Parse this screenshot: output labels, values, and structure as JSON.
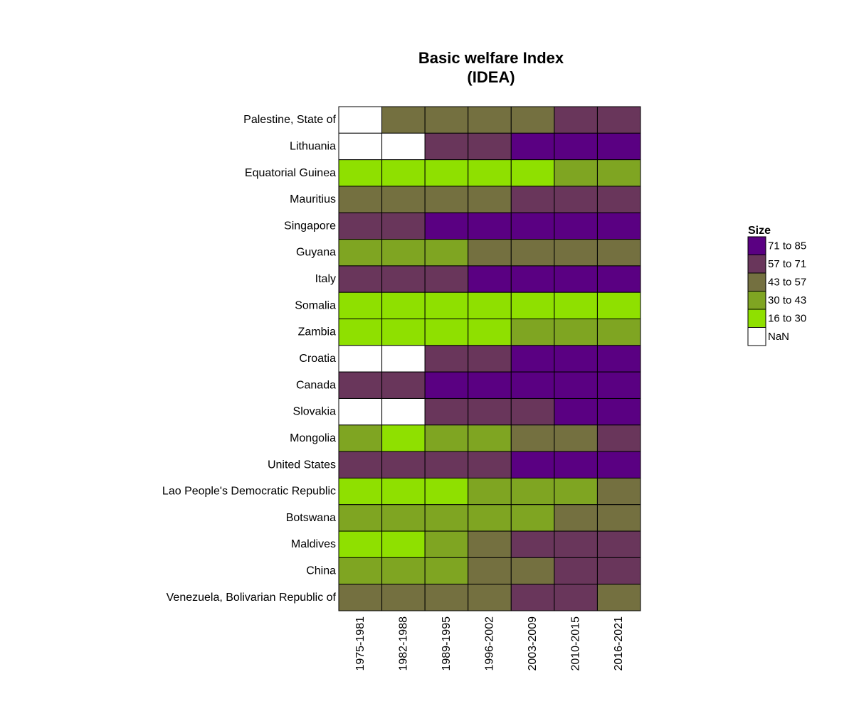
{
  "chart_data": {
    "type": "heatmap",
    "title": [
      "Basic welfare Index",
      "(IDEA)"
    ],
    "rows": [
      "Palestine, State of",
      "Lithuania",
      "Equatorial Guinea",
      "Mauritius",
      "Singapore",
      "Guyana",
      "Italy",
      "Somalia",
      "Zambia",
      "Croatia",
      "Canada",
      "Slovakia",
      "Mongolia",
      "United States",
      "Lao People's Democratic Republic",
      "Botswana",
      "Maldives",
      "China",
      "Venezuela, Bolivarian Republic of"
    ],
    "columns": [
      "1975-1981",
      "1982-1988",
      "1989-1995",
      "1996-2002",
      "2003-2009",
      "2010-2015",
      "2016-2021"
    ],
    "values": [
      [
        "NaN",
        "43 to 57",
        "43 to 57",
        "43 to 57",
        "43 to 57",
        "57 to 71",
        "57 to 71"
      ],
      [
        "NaN",
        "NaN",
        "57 to 71",
        "57 to 71",
        "71 to 85",
        "71 to 85",
        "71 to 85"
      ],
      [
        "16 to 30",
        "16 to 30",
        "16 to 30",
        "16 to 30",
        "16 to 30",
        "30 to 43",
        "30 to 43"
      ],
      [
        "43 to 57",
        "43 to 57",
        "43 to 57",
        "43 to 57",
        "57 to 71",
        "57 to 71",
        "57 to 71"
      ],
      [
        "57 to 71",
        "57 to 71",
        "71 to 85",
        "71 to 85",
        "71 to 85",
        "71 to 85",
        "71 to 85"
      ],
      [
        "30 to 43",
        "30 to 43",
        "30 to 43",
        "43 to 57",
        "43 to 57",
        "43 to 57",
        "43 to 57"
      ],
      [
        "57 to 71",
        "57 to 71",
        "57 to 71",
        "71 to 85",
        "71 to 85",
        "71 to 85",
        "71 to 85"
      ],
      [
        "16 to 30",
        "16 to 30",
        "16 to 30",
        "16 to 30",
        "16 to 30",
        "16 to 30",
        "16 to 30"
      ],
      [
        "16 to 30",
        "16 to 30",
        "16 to 30",
        "16 to 30",
        "30 to 43",
        "30 to 43",
        "30 to 43"
      ],
      [
        "NaN",
        "NaN",
        "57 to 71",
        "57 to 71",
        "71 to 85",
        "71 to 85",
        "71 to 85"
      ],
      [
        "57 to 71",
        "57 to 71",
        "71 to 85",
        "71 to 85",
        "71 to 85",
        "71 to 85",
        "71 to 85"
      ],
      [
        "NaN",
        "NaN",
        "57 to 71",
        "57 to 71",
        "57 to 71",
        "71 to 85",
        "71 to 85"
      ],
      [
        "30 to 43",
        "16 to 30",
        "30 to 43",
        "30 to 43",
        "43 to 57",
        "43 to 57",
        "57 to 71"
      ],
      [
        "57 to 71",
        "57 to 71",
        "57 to 71",
        "57 to 71",
        "71 to 85",
        "71 to 85",
        "71 to 85"
      ],
      [
        "16 to 30",
        "16 to 30",
        "16 to 30",
        "30 to 43",
        "30 to 43",
        "30 to 43",
        "43 to 57"
      ],
      [
        "30 to 43",
        "30 to 43",
        "30 to 43",
        "30 to 43",
        "30 to 43",
        "43 to 57",
        "43 to 57"
      ],
      [
        "16 to 30",
        "16 to 30",
        "30 to 43",
        "43 to 57",
        "57 to 71",
        "57 to 71",
        "57 to 71"
      ],
      [
        "30 to 43",
        "30 to 43",
        "30 to 43",
        "43 to 57",
        "43 to 57",
        "57 to 71",
        "57 to 71"
      ],
      [
        "43 to 57",
        "43 to 57",
        "43 to 57",
        "43 to 57",
        "57 to 71",
        "57 to 71",
        "43 to 57"
      ]
    ],
    "legend": {
      "title": "Size",
      "position": "right",
      "items": [
        {
          "label": "71 to 85",
          "color": "#5a0082"
        },
        {
          "label": "57 to 71",
          "color": "#69365b"
        },
        {
          "label": "43 to 57",
          "color": "#747040"
        },
        {
          "label": "30 to 43",
          "color": "#7fa522"
        },
        {
          "label": "16 to 30",
          "color": "#8fe000"
        },
        {
          "label": "NaN",
          "color": "#ffffff"
        }
      ]
    },
    "border_color": "#000000"
  }
}
